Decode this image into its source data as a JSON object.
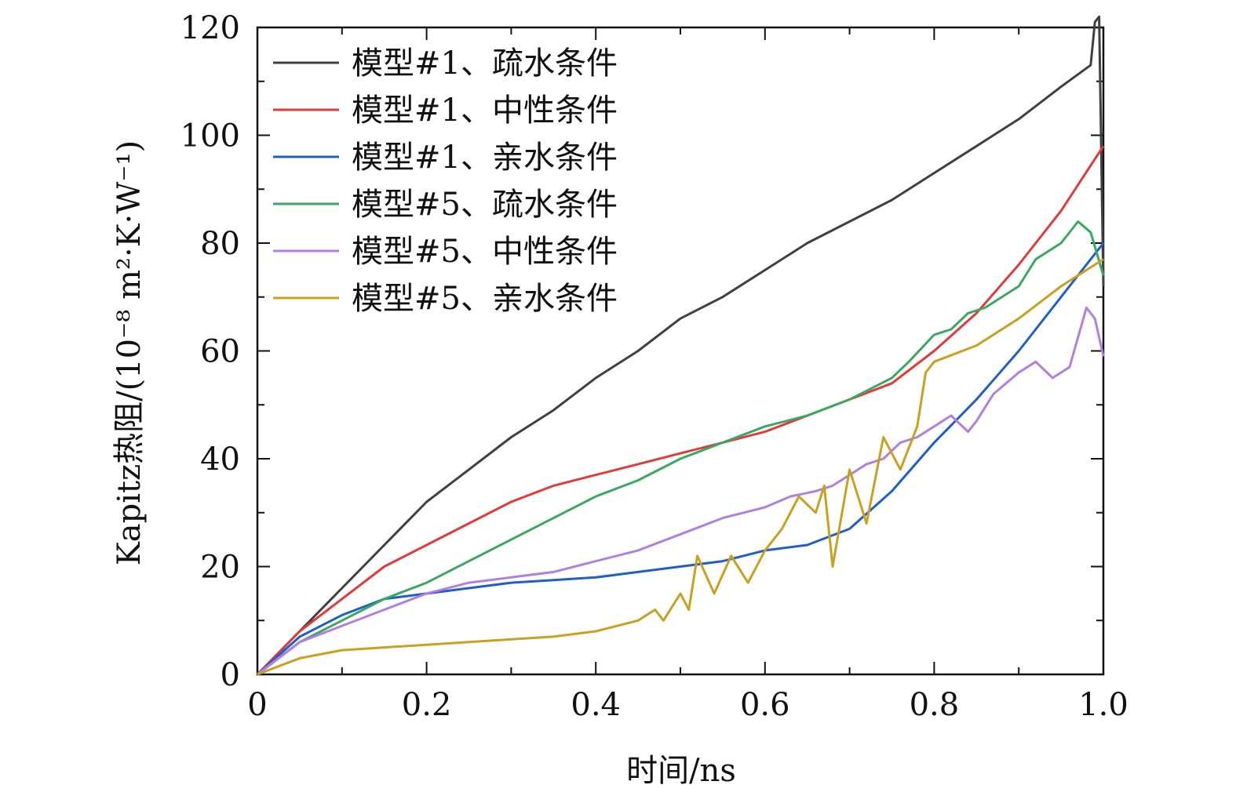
{
  "chart_data": {
    "type": "line",
    "xlabel": "时间/ns",
    "ylabel": "Kapitz热阻/(10⁻⁸ m²·K·W⁻¹)",
    "xlim": [
      0,
      1.0
    ],
    "ylim": [
      0,
      120
    ],
    "x_ticks": [
      0,
      0.2,
      0.4,
      0.6,
      0.8,
      1.0
    ],
    "x_tick_labels": [
      "0",
      "0.2",
      "0.4",
      "0.6",
      "0.8",
      "1.0"
    ],
    "y_ticks": [
      0,
      20,
      40,
      60,
      80,
      100,
      120
    ],
    "y_tick_labels": [
      "0",
      "20",
      "40",
      "60",
      "80",
      "100",
      "120"
    ],
    "legend_position": "top-left",
    "grid": false,
    "series": [
      {
        "name": "模型#1、疏水条件",
        "color": "#404040",
        "points": [
          [
            0,
            0
          ],
          [
            0.05,
            8
          ],
          [
            0.1,
            16
          ],
          [
            0.15,
            24
          ],
          [
            0.2,
            32
          ],
          [
            0.25,
            38
          ],
          [
            0.3,
            44
          ],
          [
            0.35,
            49
          ],
          [
            0.4,
            55
          ],
          [
            0.45,
            60
          ],
          [
            0.5,
            66
          ],
          [
            0.55,
            70
          ],
          [
            0.6,
            75
          ],
          [
            0.65,
            80
          ],
          [
            0.7,
            84
          ],
          [
            0.75,
            88
          ],
          [
            0.8,
            93
          ],
          [
            0.85,
            98
          ],
          [
            0.9,
            103
          ],
          [
            0.95,
            109
          ],
          [
            0.985,
            113
          ],
          [
            0.99,
            121
          ],
          [
            0.995,
            122
          ],
          [
            1.0,
            72
          ]
        ]
      },
      {
        "name": "模型#1、中性条件",
        "color": "#e03a3a",
        "points": [
          [
            0,
            0
          ],
          [
            0.05,
            8
          ],
          [
            0.1,
            14
          ],
          [
            0.15,
            20
          ],
          [
            0.2,
            24
          ],
          [
            0.25,
            28
          ],
          [
            0.3,
            32
          ],
          [
            0.35,
            35
          ],
          [
            0.4,
            37
          ],
          [
            0.45,
            39
          ],
          [
            0.5,
            41
          ],
          [
            0.55,
            43
          ],
          [
            0.6,
            45
          ],
          [
            0.65,
            48
          ],
          [
            0.7,
            51
          ],
          [
            0.75,
            54
          ],
          [
            0.8,
            60
          ],
          [
            0.85,
            67
          ],
          [
            0.9,
            76
          ],
          [
            0.95,
            86
          ],
          [
            1.0,
            98
          ]
        ]
      },
      {
        "name": "模型#1、亲水条件",
        "color": "#1f5fc7",
        "points": [
          [
            0,
            0
          ],
          [
            0.05,
            7
          ],
          [
            0.1,
            11
          ],
          [
            0.15,
            14
          ],
          [
            0.2,
            15
          ],
          [
            0.25,
            16
          ],
          [
            0.3,
            17
          ],
          [
            0.35,
            17.5
          ],
          [
            0.4,
            18
          ],
          [
            0.45,
            19
          ],
          [
            0.5,
            20
          ],
          [
            0.55,
            21
          ],
          [
            0.6,
            23
          ],
          [
            0.65,
            24
          ],
          [
            0.7,
            27
          ],
          [
            0.75,
            34
          ],
          [
            0.8,
            43
          ],
          [
            0.85,
            51
          ],
          [
            0.9,
            60
          ],
          [
            0.95,
            70
          ],
          [
            1.0,
            80
          ]
        ]
      },
      {
        "name": "模型#5、疏水条件",
        "color": "#3aa860",
        "points": [
          [
            0,
            0
          ],
          [
            0.05,
            6
          ],
          [
            0.1,
            10
          ],
          [
            0.15,
            14
          ],
          [
            0.2,
            17
          ],
          [
            0.25,
            21
          ],
          [
            0.3,
            25
          ],
          [
            0.35,
            29
          ],
          [
            0.4,
            33
          ],
          [
            0.45,
            36
          ],
          [
            0.5,
            40
          ],
          [
            0.55,
            43
          ],
          [
            0.6,
            46
          ],
          [
            0.65,
            48
          ],
          [
            0.7,
            51
          ],
          [
            0.75,
            55
          ],
          [
            0.77,
            58
          ],
          [
            0.8,
            63
          ],
          [
            0.82,
            64
          ],
          [
            0.84,
            67
          ],
          [
            0.86,
            68
          ],
          [
            0.9,
            72
          ],
          [
            0.92,
            77
          ],
          [
            0.95,
            80
          ],
          [
            0.97,
            84
          ],
          [
            0.985,
            82
          ],
          [
            1.0,
            74
          ]
        ]
      },
      {
        "name": "模型#5、中性条件",
        "color": "#b07fe0",
        "points": [
          [
            0,
            0
          ],
          [
            0.05,
            6
          ],
          [
            0.1,
            9
          ],
          [
            0.15,
            12
          ],
          [
            0.2,
            15
          ],
          [
            0.25,
            17
          ],
          [
            0.3,
            18
          ],
          [
            0.35,
            19
          ],
          [
            0.4,
            21
          ],
          [
            0.45,
            23
          ],
          [
            0.5,
            26
          ],
          [
            0.55,
            29
          ],
          [
            0.6,
            31
          ],
          [
            0.63,
            33
          ],
          [
            0.66,
            34
          ],
          [
            0.68,
            35
          ],
          [
            0.7,
            37
          ],
          [
            0.72,
            39
          ],
          [
            0.74,
            40
          ],
          [
            0.76,
            43
          ],
          [
            0.78,
            44
          ],
          [
            0.8,
            46
          ],
          [
            0.82,
            48
          ],
          [
            0.84,
            45
          ],
          [
            0.85,
            47
          ],
          [
            0.87,
            52
          ],
          [
            0.9,
            56
          ],
          [
            0.92,
            58
          ],
          [
            0.94,
            55
          ],
          [
            0.96,
            57
          ],
          [
            0.98,
            68
          ],
          [
            0.99,
            66
          ],
          [
            1.0,
            59
          ]
        ]
      },
      {
        "name": "模型#5、亲水条件",
        "color": "#c9a020",
        "points": [
          [
            0,
            0
          ],
          [
            0.05,
            3
          ],
          [
            0.1,
            4.5
          ],
          [
            0.15,
            5
          ],
          [
            0.2,
            5.5
          ],
          [
            0.25,
            6
          ],
          [
            0.3,
            6.5
          ],
          [
            0.35,
            7
          ],
          [
            0.4,
            8
          ],
          [
            0.45,
            10
          ],
          [
            0.47,
            12
          ],
          [
            0.48,
            10
          ],
          [
            0.5,
            15
          ],
          [
            0.51,
            12
          ],
          [
            0.52,
            22
          ],
          [
            0.54,
            15
          ],
          [
            0.56,
            22
          ],
          [
            0.58,
            17
          ],
          [
            0.6,
            23
          ],
          [
            0.62,
            27
          ],
          [
            0.64,
            33
          ],
          [
            0.66,
            30
          ],
          [
            0.67,
            35
          ],
          [
            0.68,
            20
          ],
          [
            0.7,
            38
          ],
          [
            0.72,
            28
          ],
          [
            0.74,
            44
          ],
          [
            0.76,
            38
          ],
          [
            0.78,
            46
          ],
          [
            0.79,
            56
          ],
          [
            0.8,
            58
          ],
          [
            0.85,
            61
          ],
          [
            0.9,
            66
          ],
          [
            0.95,
            72
          ],
          [
            1.0,
            77
          ]
        ]
      }
    ]
  }
}
